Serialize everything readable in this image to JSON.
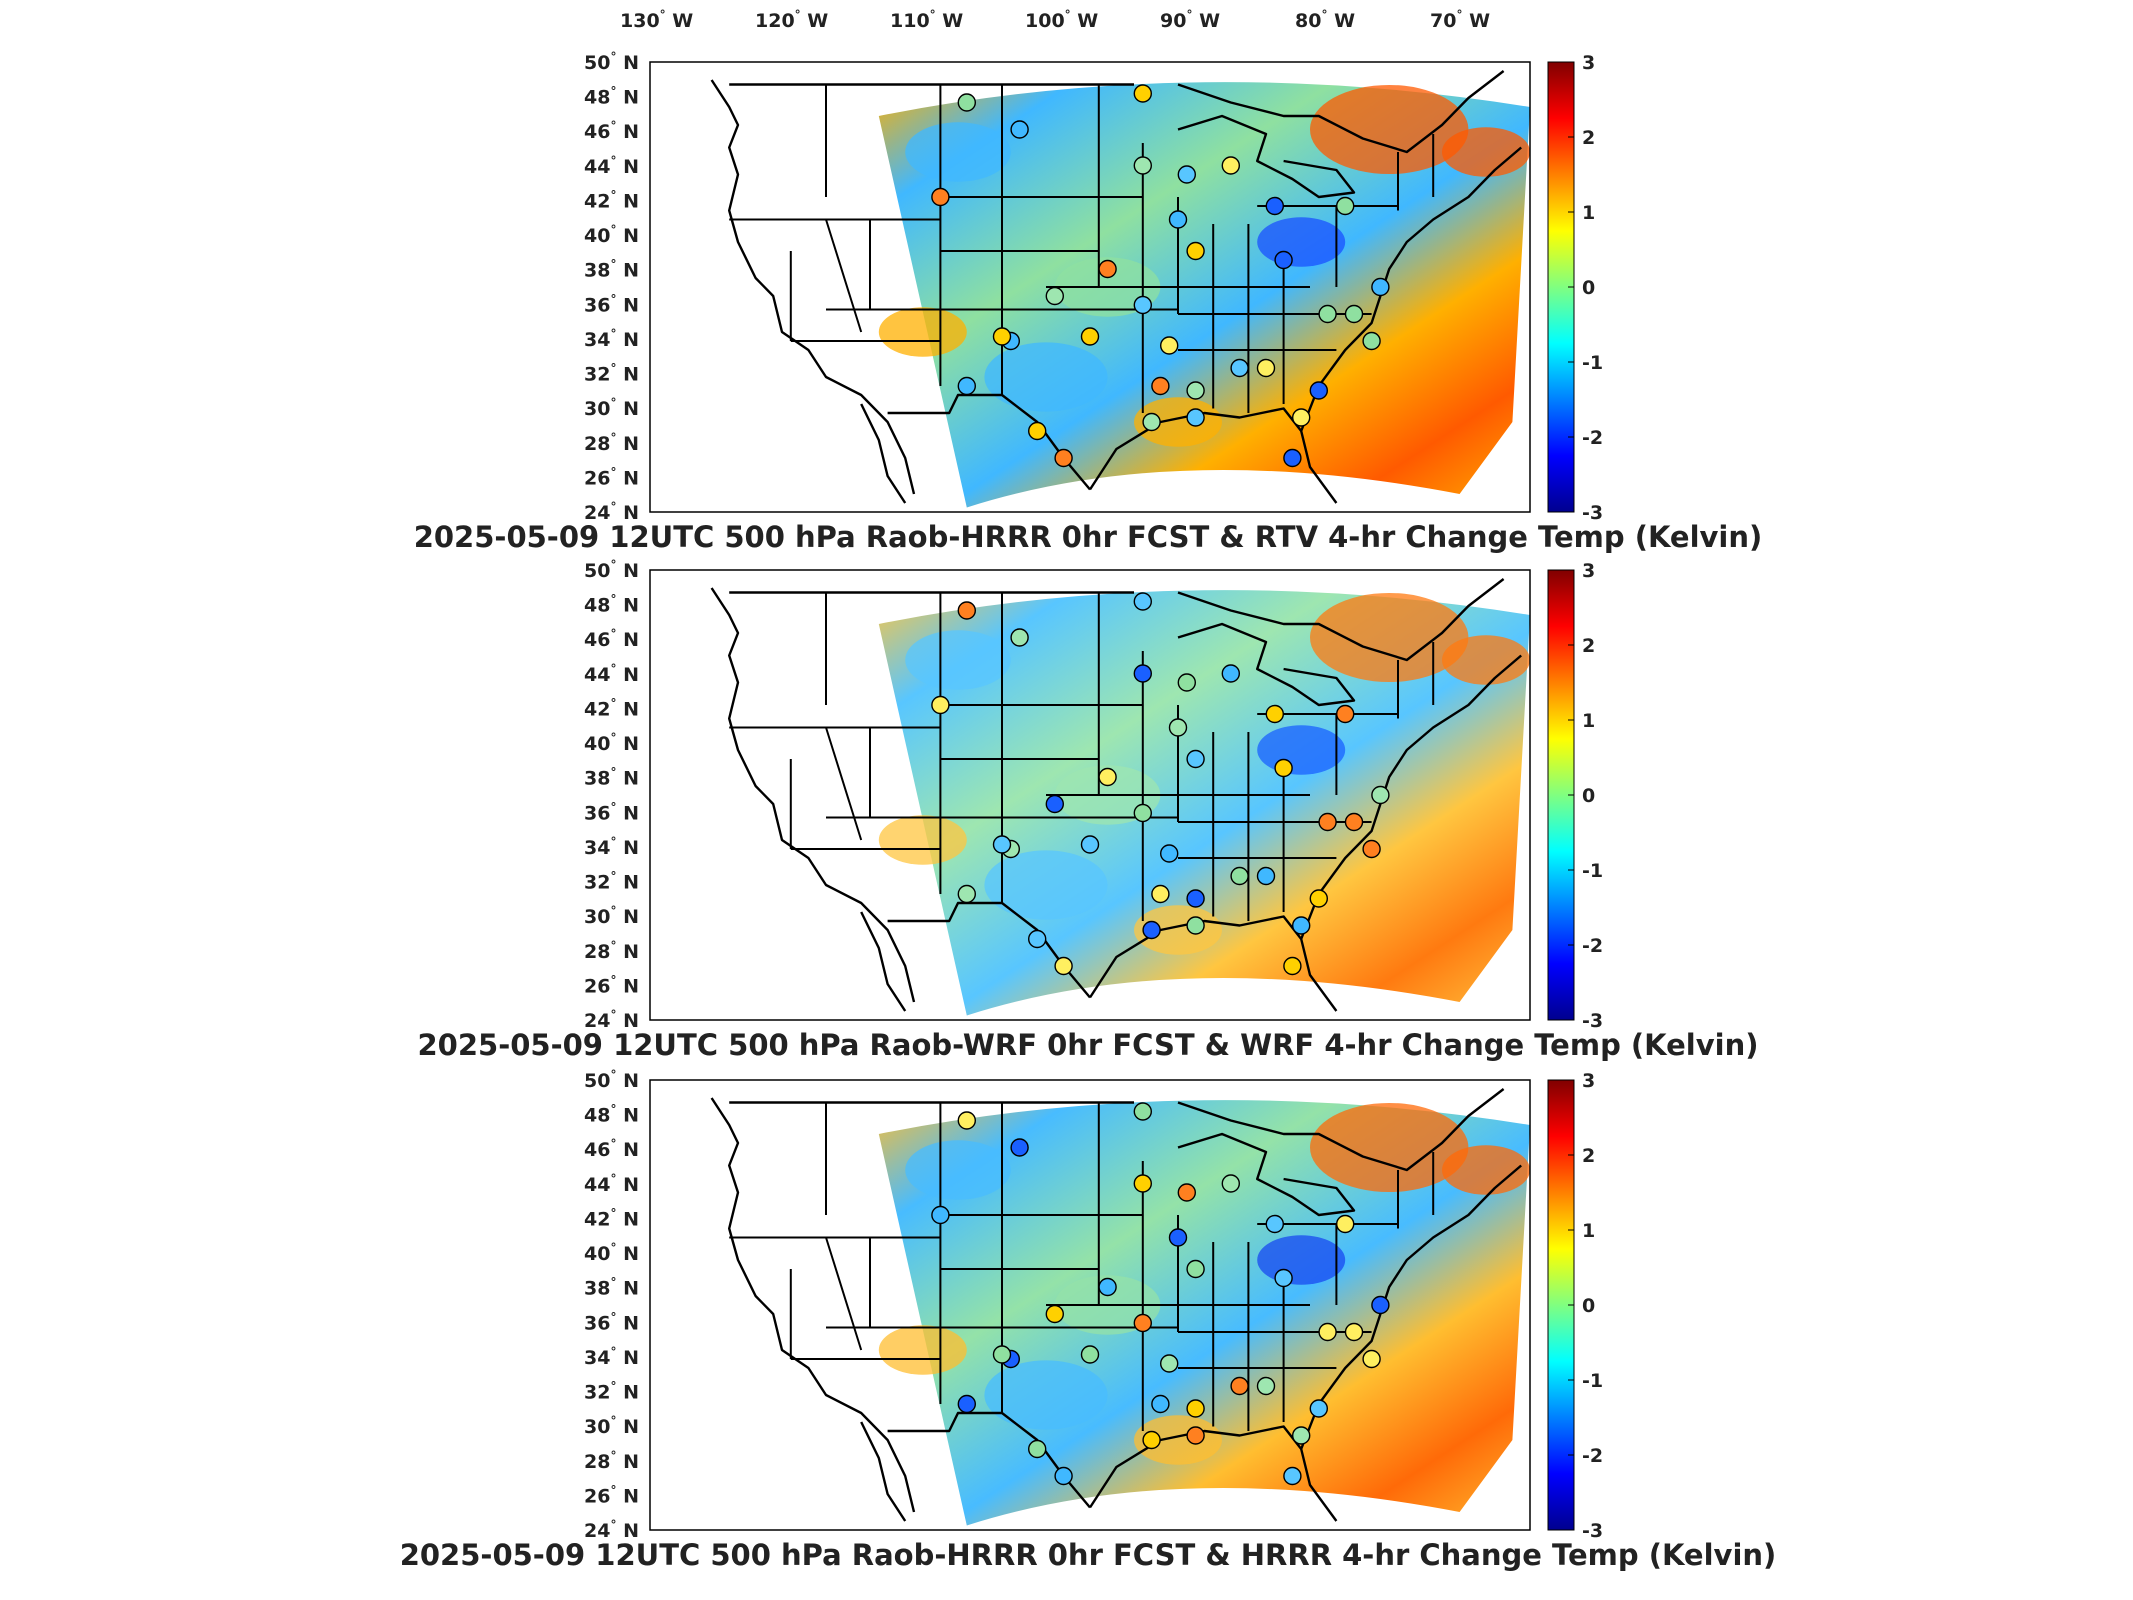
{
  "longitude_labels": [
    "130",
    "120",
    "110",
    "100",
    "90",
    "80",
    "70"
  ],
  "longitude_suffix": "W",
  "latitude_labels": [
    "50",
    "48",
    "46",
    "44",
    "42",
    "40",
    "38",
    "36",
    "34",
    "32",
    "30",
    "28",
    "26",
    "24"
  ],
  "latitude_suffix": "N",
  "degree_symbol": "°",
  "colorbar": {
    "ticks": [
      "3",
      "2",
      "1",
      "0",
      "-1",
      "-2",
      "-3"
    ],
    "min": -3,
    "max": 3,
    "colormap": [
      "#00008f",
      "#0000ff",
      "#0080ff",
      "#00ffff",
      "#80ff80",
      "#ffff00",
      "#ff8000",
      "#ff0000",
      "#800000"
    ]
  },
  "panels": [
    {
      "title": "2025-05-09 12UTC 500 hPa Raob-HRRR 0hr FCST & RTV 4-hr Change Temp (Kelvin)",
      "field_colors": {
        "base": "#8fe0a0",
        "warm": "#ffb000",
        "hot": "#ff5a00",
        "cool": "#40b8ff",
        "cold": "#1a50ff"
      }
    },
    {
      "title": "2025-05-09 12UTC 500 hPa Raob-WRF 0hr FCST & WRF 4-hr Change Temp (Kelvin)",
      "field_colors": {
        "base": "#9ee6b0",
        "warm": "#ffc640",
        "hot": "#ff7a10",
        "cool": "#58c6ff",
        "cold": "#1a60ff"
      }
    },
    {
      "title": "2025-05-09 12UTC 500 hPa Raob-HRRR 0hr FCST & HRRR 4-hr Change Temp (Kelvin)",
      "field_colors": {
        "base": "#94e2a8",
        "warm": "#ffbe30",
        "hot": "#ff6a08",
        "cool": "#48bcff",
        "cold": "#1848f0"
      }
    }
  ]
}
